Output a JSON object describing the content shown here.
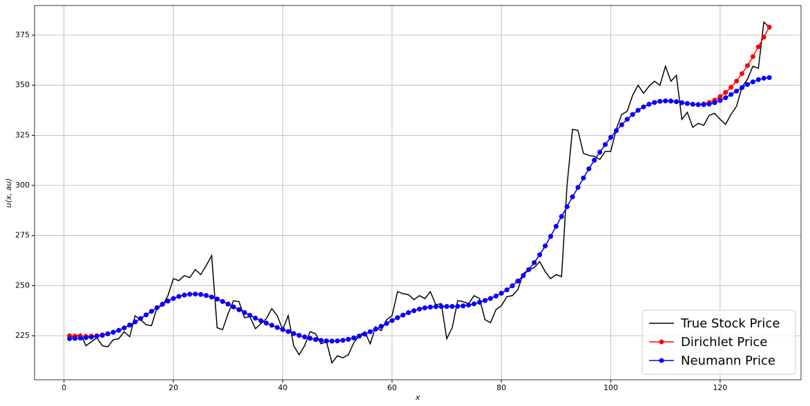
{
  "chart_data": {
    "type": "line",
    "xlabel": "x",
    "ylabel": "u(x, au)",
    "xlim": [
      -5.4,
      134.8
    ],
    "ylim": [
      203,
      389.8
    ],
    "xticks": [
      0,
      20,
      40,
      60,
      80,
      100,
      120
    ],
    "yticks": [
      225,
      250,
      275,
      300,
      325,
      350,
      375
    ],
    "grid": true,
    "legend": "lower right",
    "x": [
      1,
      2,
      3,
      4,
      5,
      6,
      7,
      8,
      9,
      10,
      11,
      12,
      13,
      14,
      15,
      16,
      17,
      18,
      19,
      20,
      21,
      22,
      23,
      24,
      25,
      26,
      27,
      28,
      29,
      30,
      31,
      32,
      33,
      34,
      35,
      36,
      37,
      38,
      39,
      40,
      41,
      42,
      43,
      44,
      45,
      46,
      47,
      48,
      49,
      50,
      51,
      52,
      53,
      54,
      55,
      56,
      57,
      58,
      59,
      60,
      61,
      62,
      63,
      64,
      65,
      66,
      67,
      68,
      69,
      70,
      71,
      72,
      73,
      74,
      75,
      76,
      77,
      78,
      79,
      80,
      81,
      82,
      83,
      84,
      85,
      86,
      87,
      88,
      89,
      90,
      91,
      92,
      93,
      94,
      95,
      96,
      97,
      98,
      99,
      100,
      101,
      102,
      103,
      104,
      105,
      106,
      107,
      108,
      109,
      110,
      111,
      112,
      113,
      114,
      115,
      116,
      117,
      118,
      119,
      120,
      121,
      122,
      123,
      124,
      125,
      126,
      127,
      128,
      129
    ],
    "series": [
      {
        "name": "True Stock Price",
        "color": "#000000",
        "marker": false,
        "values": [
          225,
          224,
          226,
          220,
          222,
          224,
          220,
          219.5,
          223,
          223.5,
          227,
          224.5,
          235,
          233,
          230.5,
          230,
          239,
          240,
          245,
          253.5,
          252.5,
          255,
          254,
          258,
          255.5,
          260,
          265,
          229,
          228,
          236,
          242.5,
          242,
          234,
          234.5,
          228.5,
          231,
          233.5,
          238.5,
          235,
          228,
          235,
          220,
          215.5,
          220,
          227,
          226,
          221,
          222,
          211.5,
          215,
          214,
          215.5,
          221.5,
          225,
          227,
          221,
          229.5,
          227.5,
          233,
          235,
          247,
          246,
          245.5,
          243,
          245,
          243.5,
          247,
          240.5,
          241,
          223.5,
          229,
          242.5,
          242,
          241,
          245,
          243.5,
          233,
          231.5,
          238,
          240,
          244.5,
          245,
          248,
          256,
          258,
          259,
          262,
          257,
          253.5,
          255.5,
          254.5,
          300,
          328,
          327.5,
          316,
          315,
          314.5,
          313,
          317,
          317,
          328,
          335.5,
          337,
          345,
          350,
          346,
          349.5,
          352,
          350,
          359.5,
          352,
          355,
          333,
          336.5,
          329,
          331,
          330,
          335,
          336,
          333,
          330.5,
          335.5,
          339.5,
          349,
          353,
          359.5,
          358.5,
          381.5,
          379
        ]
      },
      {
        "name": "Dirichlet Price",
        "color": "#ff0000",
        "marker": true,
        "values": [
          225,
          224.8,
          224.7,
          224.7,
          224.8,
          225,
          225.4,
          226,
          226.8,
          227.7,
          228.9,
          230.3,
          231.9,
          233.6,
          235.4,
          237.2,
          239,
          240.7,
          242.3,
          243.6,
          244.6,
          245.3,
          245.7,
          245.8,
          245.6,
          245.1,
          244.3,
          243.3,
          242.1,
          240.8,
          239.4,
          238,
          236.6,
          235.2,
          233.8,
          232.5,
          231.3,
          230.2,
          229.1,
          228.1,
          227.1,
          226.1,
          225.2,
          224.4,
          223.7,
          223.1,
          222.7,
          222.4,
          222.3,
          222.4,
          222.7,
          223.2,
          223.9,
          224.8,
          225.8,
          227,
          228.3,
          229.7,
          231.1,
          232.6,
          234,
          235.3,
          236.5,
          237.5,
          238.3,
          238.9,
          239.3,
          239.5,
          239.6,
          239.6,
          239.6,
          239.7,
          239.9,
          240.3,
          240.9,
          241.7,
          242.6,
          243.6,
          244.8,
          246.2,
          247.9,
          249.9,
          252.3,
          255,
          258,
          261.5,
          265.4,
          269.8,
          274.6,
          279.6,
          284.5,
          289.4,
          294.3,
          299,
          303.7,
          308.3,
          312.6,
          316.6,
          320.4,
          324,
          327.3,
          330.3,
          333,
          335.4,
          337.5,
          339.2,
          340.5,
          341.4,
          342,
          342.2,
          342.1,
          341.8,
          341.3,
          340.9,
          340.5,
          340.4,
          340.7,
          341.4,
          342.6,
          344.3,
          346.4,
          349,
          352.1,
          355.8,
          359.8,
          364.3,
          369.2,
          374,
          379
        ]
      },
      {
        "name": "Neumann Price",
        "color": "#0000ff",
        "marker": true,
        "values": [
          223.5,
          223.6,
          223.8,
          224,
          224.3,
          224.7,
          225.2,
          225.9,
          226.7,
          227.7,
          228.9,
          230.3,
          231.9,
          233.6,
          235.4,
          237.2,
          239,
          240.7,
          242.3,
          243.6,
          244.6,
          245.3,
          245.7,
          245.8,
          245.6,
          245.1,
          244.3,
          243.3,
          242.1,
          240.8,
          239.4,
          238,
          236.6,
          235.2,
          233.8,
          232.5,
          231.3,
          230.2,
          229.1,
          228.1,
          227.1,
          226.1,
          225.2,
          224.4,
          223.7,
          223.1,
          222.7,
          222.4,
          222.3,
          222.4,
          222.7,
          223.2,
          223.9,
          224.8,
          225.8,
          227,
          228.3,
          229.7,
          231.1,
          232.6,
          234,
          235.3,
          236.5,
          237.5,
          238.3,
          238.9,
          239.3,
          239.5,
          239.6,
          239.6,
          239.6,
          239.7,
          239.9,
          240.3,
          240.9,
          241.7,
          242.6,
          243.6,
          244.8,
          246.2,
          247.9,
          249.9,
          252.3,
          255,
          258,
          261.5,
          265.4,
          269.8,
          274.6,
          279.6,
          284.5,
          289.4,
          294.3,
          299,
          303.7,
          308.3,
          312.6,
          316.6,
          320.4,
          324,
          327.3,
          330.3,
          333,
          335.4,
          337.5,
          339.2,
          340.5,
          341.4,
          342,
          342.2,
          342.1,
          341.8,
          341.3,
          340.9,
          340.5,
          340.3,
          340.3,
          340.6,
          341.3,
          342.4,
          343.8,
          345.4,
          347.1,
          348.8,
          350.4,
          351.7,
          352.8,
          353.5,
          353.8
        ]
      }
    ]
  }
}
